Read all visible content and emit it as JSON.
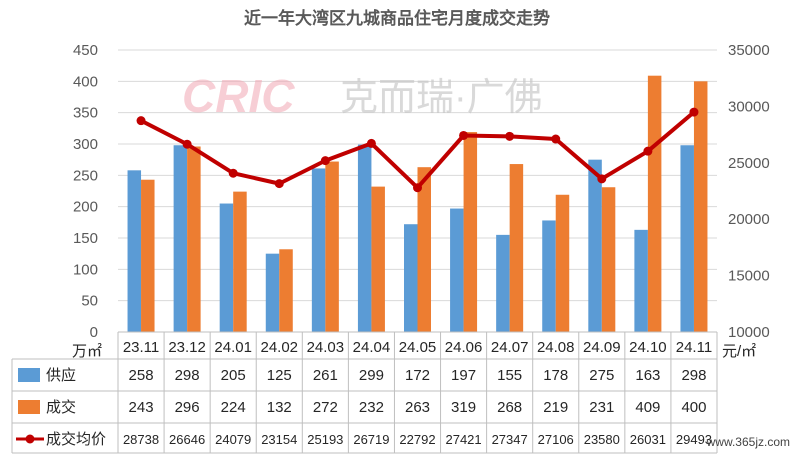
{
  "chart_data": {
    "type": "bar",
    "title": "近一年大湾区九城商品住宅月度成交走势",
    "categories": [
      "23.11",
      "23.12",
      "24.01",
      "24.02",
      "24.03",
      "24.04",
      "24.05",
      "24.06",
      "24.07",
      "24.08",
      "24.09",
      "24.10",
      "24.11"
    ],
    "series": [
      {
        "name": "供应",
        "type": "bar",
        "axis": "left",
        "color": "#5b9bd5",
        "values": [
          258,
          298,
          205,
          125,
          261,
          299,
          172,
          197,
          155,
          178,
          275,
          163,
          298
        ]
      },
      {
        "name": "成交",
        "type": "bar",
        "axis": "left",
        "color": "#ed7d31",
        "values": [
          243,
          296,
          224,
          132,
          272,
          232,
          263,
          319,
          268,
          219,
          231,
          409,
          400
        ]
      },
      {
        "name": "成交均价",
        "type": "line",
        "axis": "right",
        "color": "#c00000",
        "values": [
          28738,
          26646,
          24079,
          23154,
          25193,
          26719,
          22792,
          27421,
          27347,
          27106,
          23580,
          26031,
          29493
        ]
      }
    ],
    "left_axis": {
      "unit": "万㎡",
      "ylim": [
        0,
        450
      ],
      "ticks": [
        "0",
        "50",
        "100",
        "150",
        "200",
        "250",
        "300",
        "350",
        "400",
        "450"
      ]
    },
    "right_axis": {
      "unit": "元/㎡",
      "ylim": [
        10000,
        35000
      ],
      "ticks": [
        "10000",
        "15000",
        "20000",
        "25000",
        "30000",
        "35000"
      ]
    },
    "table_rows": [
      {
        "label": "供应",
        "values": [
          "258",
          "298",
          "205",
          "125",
          "261",
          "299",
          "172",
          "197",
          "155",
          "178",
          "275",
          "163",
          "298"
        ]
      },
      {
        "label": "成交",
        "values": [
          "243",
          "296",
          "224",
          "132",
          "272",
          "232",
          "263",
          "319",
          "268",
          "219",
          "231",
          "409",
          "400"
        ]
      },
      {
        "label": "成交均价",
        "values": [
          "28738",
          "26646",
          "24079",
          "23154",
          "25193",
          "26719",
          "22792",
          "27421",
          "27347",
          "27106",
          "23580",
          "26031",
          "29493"
        ]
      }
    ],
    "grid": true
  },
  "watermark": {
    "logo": "CRIC",
    "text": "克而瑞·广佛"
  },
  "site_mark": "www.365jz.com"
}
